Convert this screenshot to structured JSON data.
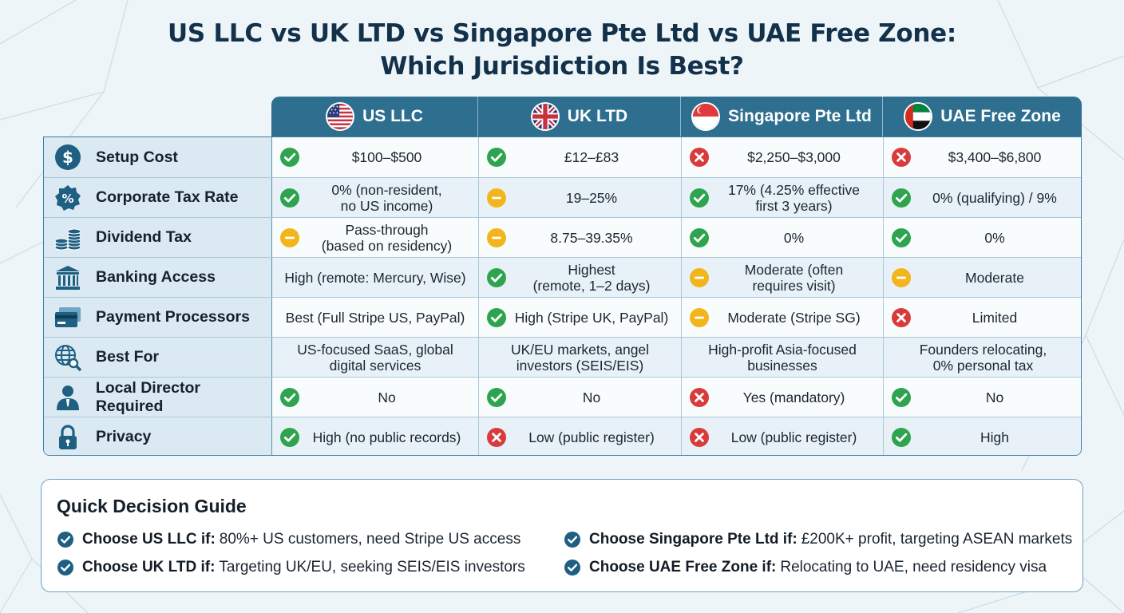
{
  "title": {
    "line1": "US LLC vs UK LTD vs Singapore Pte Ltd vs UAE Free Zone:",
    "line2": "Which Jurisdiction Is Best?"
  },
  "columns": [
    {
      "label": "US LLC",
      "flag": "us-flag-icon"
    },
    {
      "label": "UK LTD",
      "flag": "uk-flag-icon"
    },
    {
      "label": "Singapore Pte Ltd",
      "flag": "singapore-flag-icon"
    },
    {
      "label": "UAE Free Zone",
      "flag": "uae-flag-icon"
    }
  ],
  "rows": [
    {
      "label": "Setup Cost",
      "icon": "dollar-coin-icon",
      "cells": [
        {
          "status": "check",
          "text": "$100–$500"
        },
        {
          "status": "check",
          "text": "£12–£83"
        },
        {
          "status": "cross",
          "text": "$2,250–$3,000"
        },
        {
          "status": "cross",
          "text": "$3,400–$6,800"
        }
      ]
    },
    {
      "label": "Corporate Tax Rate",
      "icon": "percent-badge-icon",
      "cells": [
        {
          "status": "check",
          "text": "0% (non-resident,\nno US income)"
        },
        {
          "status": "minus",
          "text": "19–25%"
        },
        {
          "status": "check",
          "text": "17% (4.25% effective\nfirst 3 years)"
        },
        {
          "status": "check",
          "text": "0% (qualifying) / 9%"
        }
      ]
    },
    {
      "label": "Dividend Tax",
      "icon": "coin-stacks-icon",
      "cells": [
        {
          "status": "minus",
          "text": "Pass-through\n(based on residency)"
        },
        {
          "status": "minus",
          "text": "8.75–39.35%"
        },
        {
          "status": "check",
          "text": "0%"
        },
        {
          "status": "check",
          "text": "0%"
        }
      ]
    },
    {
      "label": "Banking Access",
      "icon": "bank-icon",
      "cells": [
        {
          "status": "none",
          "text": "High (remote: Mercury, Wise)"
        },
        {
          "status": "check",
          "text": "Highest\n(remote, 1–2 days)"
        },
        {
          "status": "minus",
          "text": "Moderate (often\nrequires visit)"
        },
        {
          "status": "minus",
          "text": "Moderate"
        }
      ]
    },
    {
      "label": "Payment Processors",
      "icon": "credit-card-icon",
      "cells": [
        {
          "status": "none",
          "text": "Best (Full Stripe US, PayPal)"
        },
        {
          "status": "check",
          "text": "High (Stripe UK, PayPal)"
        },
        {
          "status": "minus",
          "text": "Moderate (Stripe SG)"
        },
        {
          "status": "cross",
          "text": "Limited"
        }
      ]
    },
    {
      "label": "Best For",
      "icon": "globe-search-icon",
      "cells": [
        {
          "status": "none",
          "text": "US-focused SaaS, global\ndigital services"
        },
        {
          "status": "none",
          "text": "UK/EU markets, angel\ninvestors (SEIS/EIS)"
        },
        {
          "status": "none",
          "text": "High-profit Asia-focused\nbusinesses"
        },
        {
          "status": "none",
          "text": "Founders relocating,\n0% personal tax"
        }
      ]
    },
    {
      "label": "Local Director Required",
      "icon": "person-icon",
      "cells": [
        {
          "status": "check",
          "text": "No"
        },
        {
          "status": "check",
          "text": "No"
        },
        {
          "status": "cross",
          "text": "Yes (mandatory)"
        },
        {
          "status": "check",
          "text": "No"
        }
      ]
    },
    {
      "label": "Privacy",
      "icon": "lock-icon",
      "cells": [
        {
          "status": "check",
          "text": "High (no public records)"
        },
        {
          "status": "cross",
          "text": "Low (public register)"
        },
        {
          "status": "cross",
          "text": "Low (public register)"
        },
        {
          "status": "check",
          "text": "High"
        }
      ]
    }
  ],
  "guide": {
    "title": "Quick Decision Guide",
    "items": [
      {
        "bold": "Choose US LLC if:",
        "text": "80%+ US customers, need Stripe US access"
      },
      {
        "bold": "Choose UK LTD if:",
        "text": "Targeting UK/EU, seeking SEIS/EIS investors"
      },
      {
        "bold": "Choose Singapore Pte Ltd if:",
        "text": "£200K+ profit, targeting ASEAN markets"
      },
      {
        "bold": "Choose UAE Free Zone if:",
        "text": "Relocating to UAE, need residency visa"
      }
    ]
  },
  "colors": {
    "header": "#2e6e8e",
    "check": "#2ea44f",
    "cross": "#d93b3b",
    "minus": "#f2b51b",
    "icon": "#1f5f82"
  }
}
